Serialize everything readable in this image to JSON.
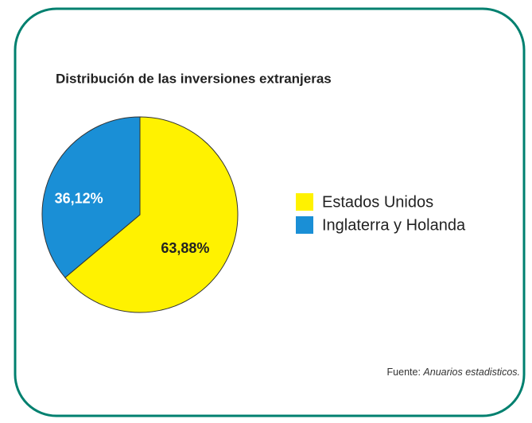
{
  "chart_data": {
    "type": "pie",
    "title": "Distribución de las inversiones extranjeras",
    "categories": [
      "Estados Unidos",
      "Inglaterra y Holanda"
    ],
    "values": [
      63.88,
      36.12
    ],
    "value_labels": [
      "63,88%",
      "36,12%"
    ],
    "colors": [
      "#fff200",
      "#1a8fd6"
    ],
    "label_colors": [
      "#222222",
      "#ffffff"
    ],
    "source_label": "Fuente:",
    "source": "Anuarios estadisticos."
  }
}
